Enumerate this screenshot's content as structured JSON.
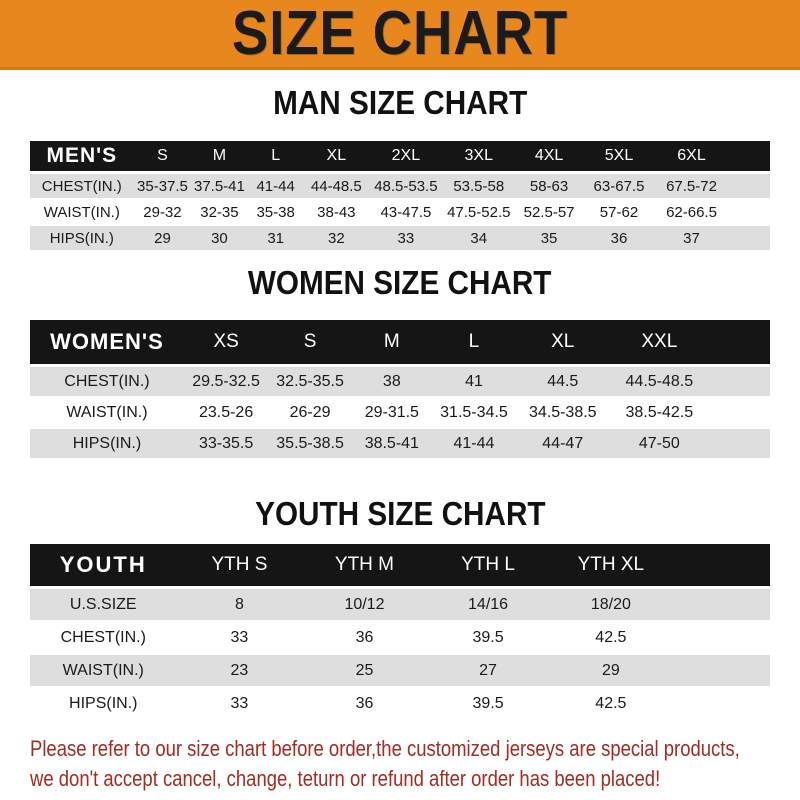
{
  "banner": {
    "title": "SIZE CHART",
    "bg_color": "#E8871E",
    "text_color": "#1b1b1b"
  },
  "sections": [
    {
      "heading": "MAN SIZE CHART",
      "table_label": "MEN'S",
      "columns": [
        "S",
        "M",
        "L",
        "XL",
        "2XL",
        "3XL",
        "4XL",
        "5XL",
        "6XL"
      ],
      "rows": [
        {
          "label": "CHEST(IN.)",
          "values": [
            "35-37.5",
            "37.5-41",
            "41-44",
            "44-48.5",
            "48.5-53.5",
            "53.5-58",
            "58-63",
            "63-67.5",
            "67.5-72"
          ]
        },
        {
          "label": "WAIST(IN.)",
          "values": [
            "29-32",
            "32-35",
            "35-38",
            "38-43",
            "43-47.5",
            "47.5-52.5",
            "52.5-57",
            "57-62",
            "62-66.5"
          ]
        },
        {
          "label": "HIPS(IN.)",
          "values": [
            "29",
            "30",
            "31",
            "32",
            "33",
            "34",
            "35",
            "36",
            "37"
          ]
        }
      ]
    },
    {
      "heading": "WOMEN SIZE CHART",
      "table_label": "WOMEN'S",
      "columns": [
        "XS",
        "S",
        "M",
        "L",
        "XL",
        "XXL"
      ],
      "rows": [
        {
          "label": "CHEST(IN.)",
          "values": [
            "29.5-32.5",
            "32.5-35.5",
            "38",
            "41",
            "44.5",
            "44.5-48.5"
          ]
        },
        {
          "label": "WAIST(IN.)",
          "values": [
            "23.5-26",
            "26-29",
            "29-31.5",
            "31.5-34.5",
            "34.5-38.5",
            "38.5-42.5"
          ]
        },
        {
          "label": "HIPS(IN.)",
          "values": [
            "33-35.5",
            "35.5-38.5",
            "38.5-41",
            "41-44",
            "44-47",
            "47-50"
          ]
        }
      ]
    },
    {
      "heading": "YOUTH SIZE CHART",
      "table_label": "YOUTH",
      "columns": [
        "YTH S",
        "YTH M",
        "YTH L",
        "YTH XL"
      ],
      "rows": [
        {
          "label": "U.S.SIZE",
          "values": [
            "8",
            "10/12",
            "14/16",
            "18/20"
          ]
        },
        {
          "label": "CHEST(IN.)",
          "values": [
            "33",
            "36",
            "39.5",
            "42.5"
          ]
        },
        {
          "label": "WAIST(IN.)",
          "values": [
            "23",
            "25",
            "27",
            "29"
          ]
        },
        {
          "label": "HIPS(IN.)",
          "values": [
            "33",
            "36",
            "39.5",
            "42.5"
          ]
        }
      ]
    }
  ],
  "disclaimer": {
    "lines": [
      "Please refer to our size chart before order,the customized jerseys are special products,",
      "we don't accept cancel, change, teturn or refund after order has been placed!"
    ],
    "color": "#A32C21"
  },
  "colors": {
    "header_bar": "#151515",
    "row_shaded": "#DEDEDE",
    "row_plain": "#FFFFFF",
    "accent_orange": "#E8871E"
  }
}
